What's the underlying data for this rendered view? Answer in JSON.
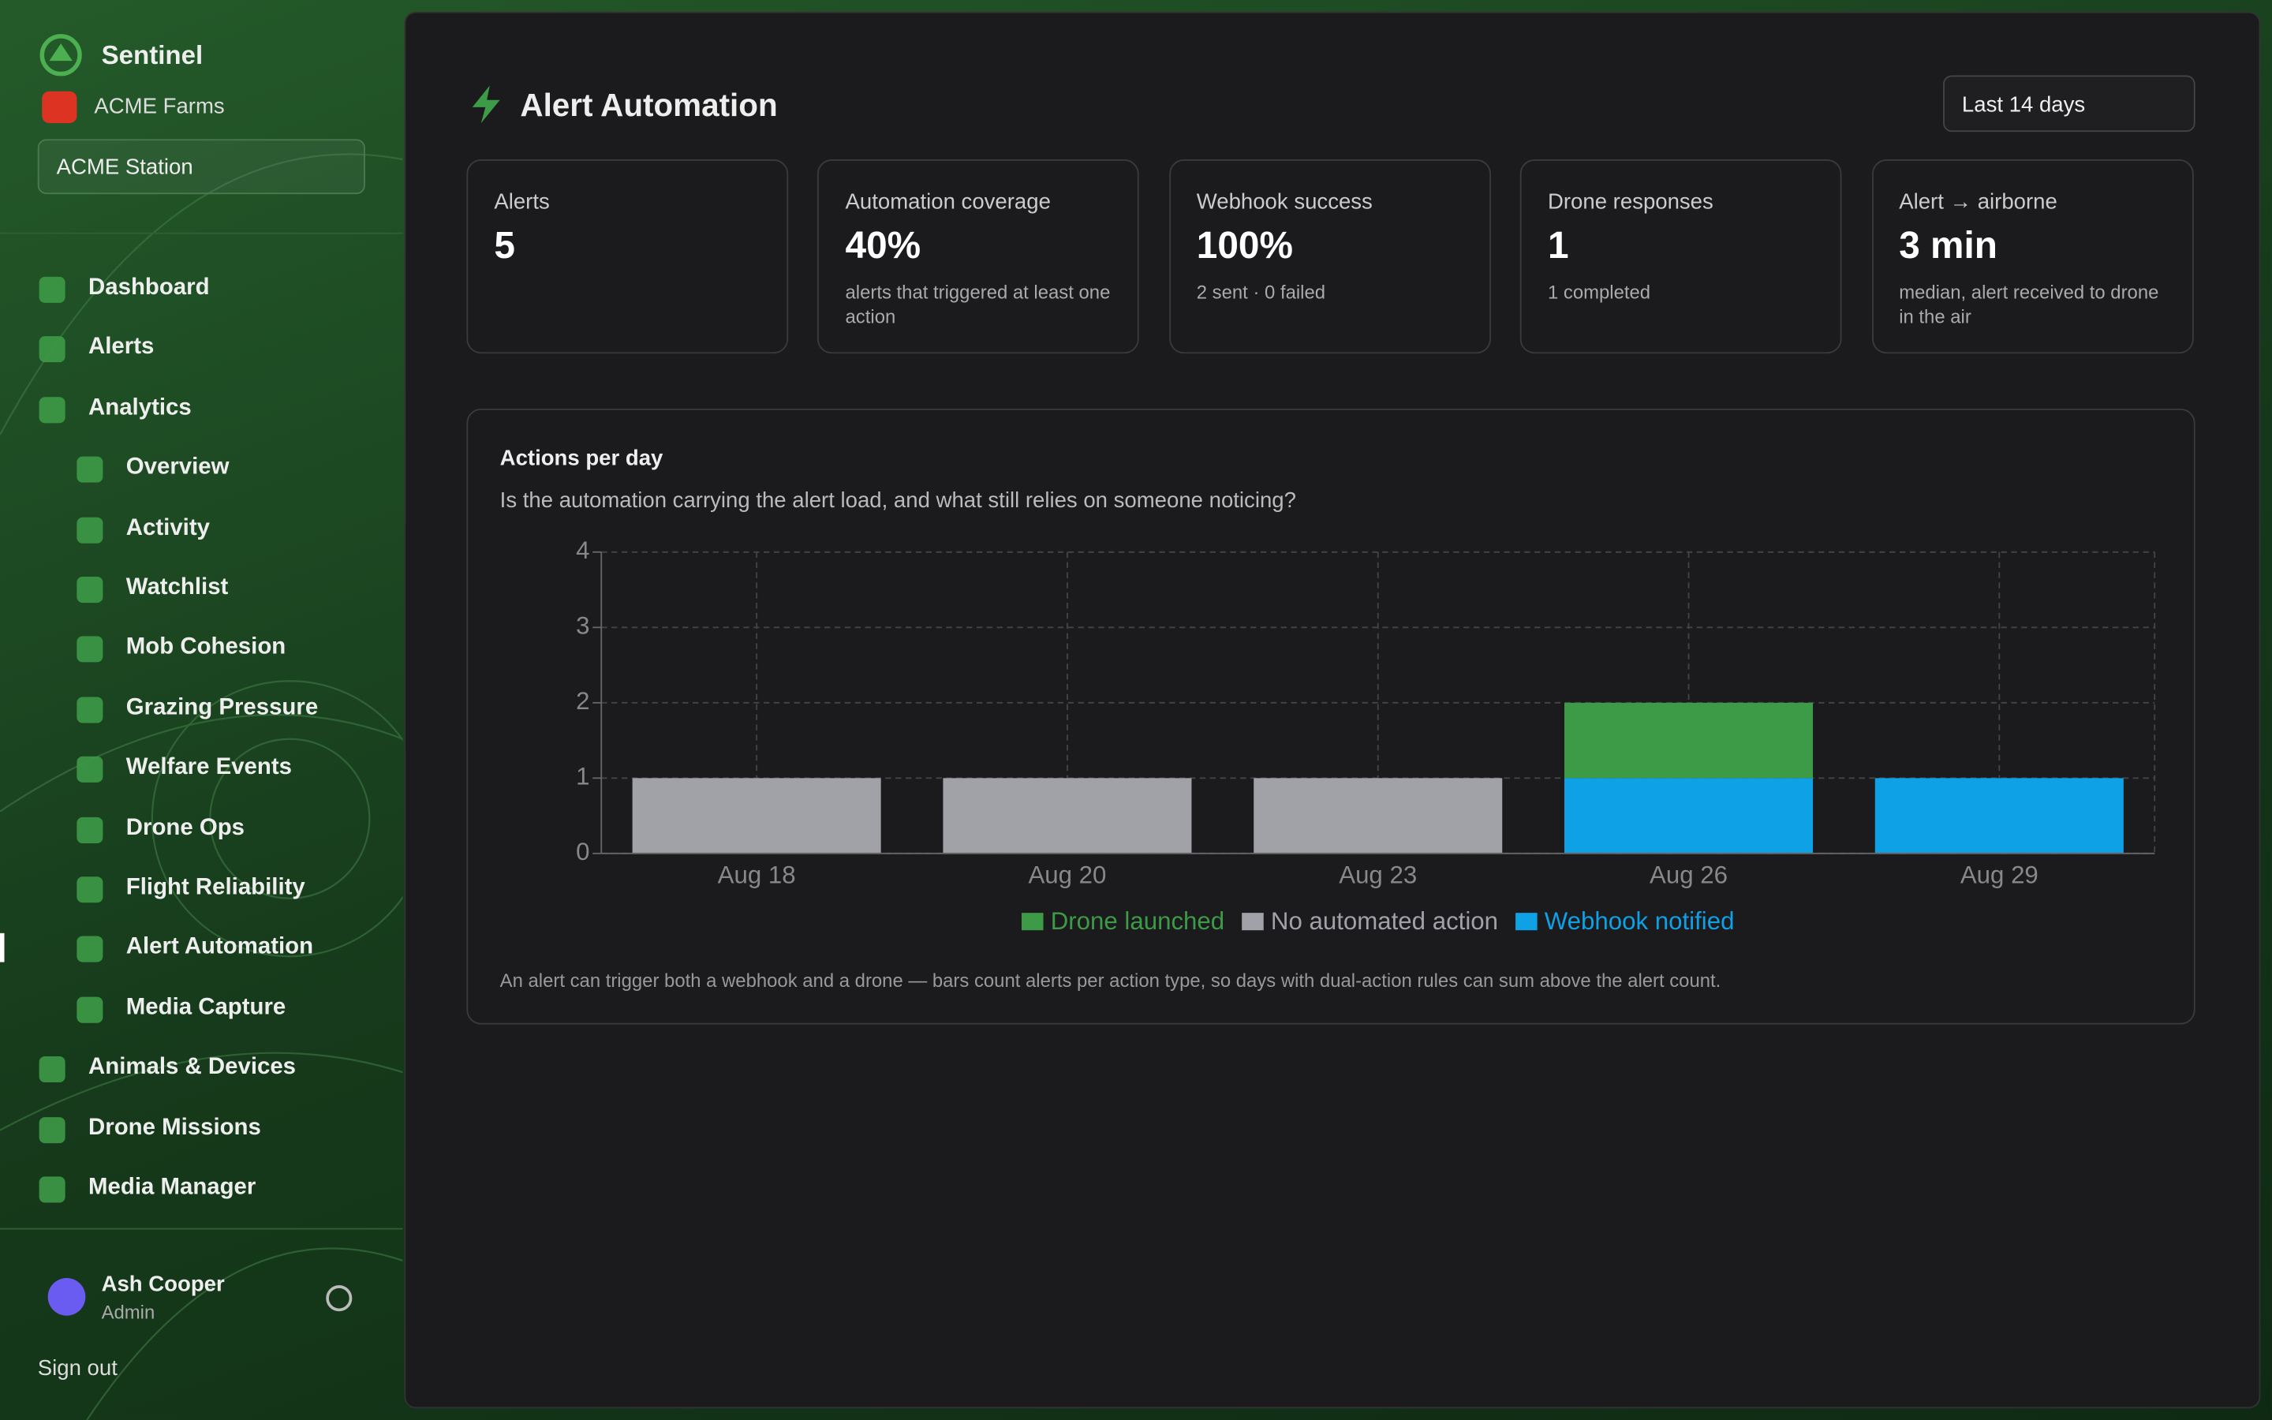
{
  "sidebar": {
    "brand": "Sentinel",
    "org": "ACME Farms",
    "station": "ACME Station",
    "nav": [
      {
        "label": "Dashboard"
      },
      {
        "label": "Alerts"
      },
      {
        "label": "Analytics",
        "children": [
          {
            "label": "Overview"
          },
          {
            "label": "Activity"
          },
          {
            "label": "Watchlist"
          },
          {
            "label": "Mob Cohesion"
          },
          {
            "label": "Grazing Pressure"
          },
          {
            "label": "Welfare Events"
          },
          {
            "label": "Drone Ops"
          },
          {
            "label": "Flight Reliability"
          },
          {
            "label": "Alert Automation",
            "active": true
          },
          {
            "label": "Media Capture"
          }
        ]
      },
      {
        "label": "Animals & Devices"
      },
      {
        "label": "Drone Missions"
      },
      {
        "label": "Media Manager"
      }
    ],
    "user": {
      "name": "Ash Cooper",
      "role": "Admin"
    },
    "sign_out": "Sign out"
  },
  "header": {
    "title": "Alert Automation",
    "range": "Last 14 days"
  },
  "kpis": [
    {
      "label": "Alerts",
      "value": "5"
    },
    {
      "label": "Automation coverage",
      "value": "40%",
      "note": "alerts that triggered at least one action"
    },
    {
      "label": "Webhook success",
      "value": "100%",
      "note": "2 sent · 0 failed"
    },
    {
      "label": "Drone responses",
      "value": "1",
      "note": "1 completed"
    },
    {
      "label": "Alert → airborne",
      "value": "3 min",
      "note": "median, alert received to drone in the air"
    }
  ],
  "chart_data": {
    "type": "bar",
    "stacked": true,
    "title": "Actions per day",
    "subtitle": "Is the automation carrying the alert load, and what still relies on someone noticing?",
    "categories": [
      "Aug 18",
      "Aug 20",
      "Aug 23",
      "Aug 26",
      "Aug 29"
    ],
    "series": [
      {
        "name": "Drone launched",
        "color": "#3d9a47",
        "values": [
          0,
          0,
          0,
          1,
          0
        ]
      },
      {
        "name": "No automated action",
        "color": "#a1a1a8",
        "values": [
          1,
          1,
          1,
          0,
          0
        ]
      },
      {
        "name": "Webhook notified",
        "color": "#0fa1e6",
        "values": [
          0,
          0,
          0,
          1,
          1
        ]
      }
    ],
    "stack_order": [
      2,
      1,
      0
    ],
    "ylim": [
      0,
      4
    ],
    "yticks": [
      0,
      1,
      2,
      3,
      4
    ],
    "grid": true,
    "legend": "bottom",
    "note": "An alert can trigger both a webhook and a drone — bars count alerts per action type, so days with dual-action rules can sum above the alert count."
  }
}
